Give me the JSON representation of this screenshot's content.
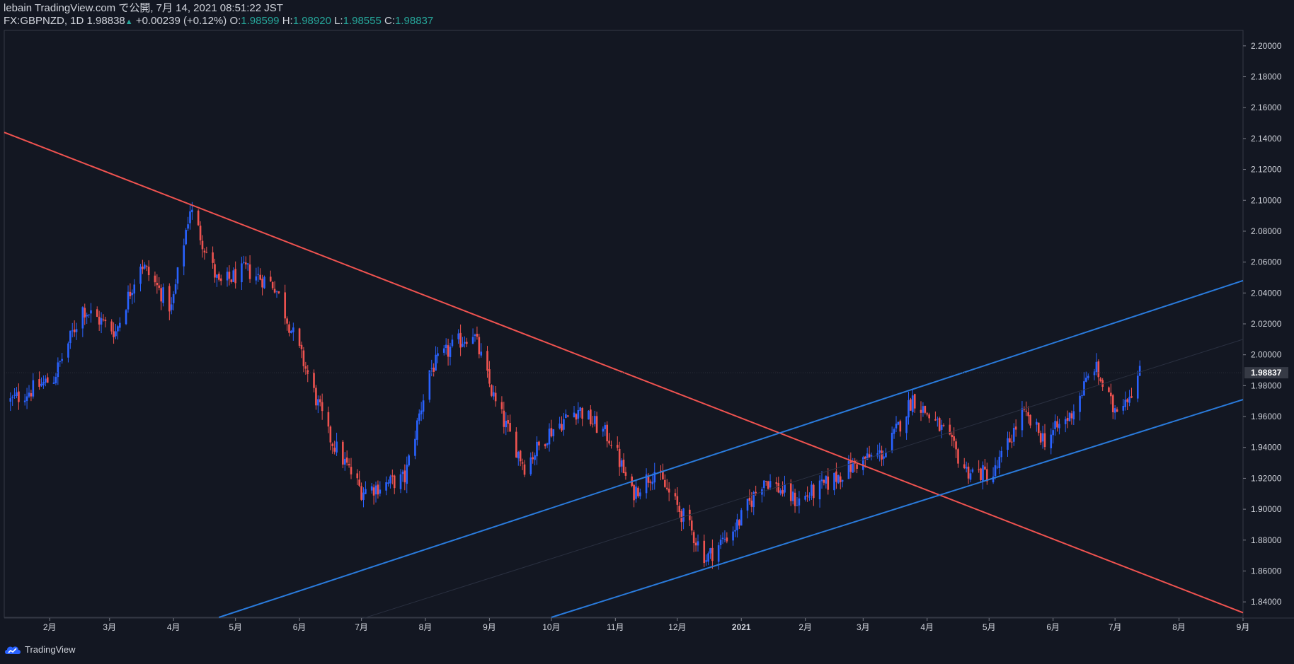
{
  "header": {
    "line1": "lebain TradingView.com で公開, 7月 14, 2021 08:51:22 JST",
    "symbol": "FX:GBPNZD, 1D",
    "price": "1.98838",
    "change_arrow": "▲",
    "change": "+0.00239 (+0.12%)",
    "o_label": "O:",
    "o_value": "1.98599",
    "h_label": "H:",
    "h_value": "1.98920",
    "l_label": "L:",
    "l_value": "1.98555",
    "c_label": "C:",
    "c_value": "1.98837"
  },
  "footer": {
    "brand": "TradingView"
  },
  "colors": {
    "background": "#131722",
    "up": "#2962ff",
    "down": "#ef5350",
    "trend_down": "#f05350",
    "channel": "#2a7bdc",
    "text": "#d1d4dc",
    "accent": "#26a69a"
  },
  "chart_data": {
    "type": "candlestick",
    "symbol": "FX:GBPNZD",
    "interval": "1D",
    "ylim": [
      1.83,
      2.21
    ],
    "y_ticks": [
      "2.20000",
      "2.18000",
      "2.16000",
      "2.14000",
      "2.12000",
      "2.10000",
      "2.08000",
      "2.06000",
      "2.04000",
      "2.02000",
      "2.00000",
      "1.98000",
      "1.96000",
      "1.94000",
      "1.92000",
      "1.90000",
      "1.88000",
      "1.86000",
      "1.84000"
    ],
    "x_ticks": [
      "2月",
      "3月",
      "4月",
      "5月",
      "6月",
      "7月",
      "8月",
      "9月",
      "10月",
      "11月",
      "12月",
      "2021",
      "2月",
      "3月",
      "4月",
      "5月",
      "6月",
      "7月",
      "8月",
      "9月"
    ],
    "last_price_label": "1.98837",
    "close_series": {
      "dates": [
        "2020-01-13",
        "2020-02-03",
        "2020-02-17",
        "2020-03-04",
        "2020-03-16",
        "2020-03-31",
        "2020-04-09",
        "2020-04-23",
        "2020-05-06",
        "2020-05-20",
        "2020-06-03",
        "2020-06-15",
        "2020-07-01",
        "2020-07-10",
        "2020-07-22",
        "2020-08-03",
        "2020-08-14",
        "2020-08-24",
        "2020-09-04",
        "2020-09-18",
        "2020-09-30",
        "2020-10-14",
        "2020-10-30",
        "2020-11-09",
        "2020-11-20",
        "2020-12-04",
        "2020-12-15",
        "2020-12-30",
        "2021-01-12",
        "2021-01-28",
        "2021-02-10",
        "2021-02-26",
        "2021-03-12",
        "2021-03-25",
        "2021-04-09",
        "2021-04-20",
        "2021-05-03",
        "2021-05-17",
        "2021-05-28",
        "2021-06-09",
        "2021-06-21",
        "2021-06-30",
        "2021-07-08",
        "2021-07-13"
      ],
      "closes": [
        1.97,
        1.985,
        2.03,
        2.015,
        2.06,
        2.03,
        2.095,
        2.045,
        2.055,
        2.045,
        1.995,
        1.948,
        1.912,
        1.915,
        1.92,
        1.99,
        2.005,
        2.015,
        1.968,
        1.928,
        1.95,
        1.965,
        1.945,
        1.91,
        1.925,
        1.895,
        1.868,
        1.89,
        1.92,
        1.905,
        1.915,
        1.93,
        1.937,
        1.972,
        1.95,
        1.925,
        1.922,
        1.962,
        1.945,
        1.96,
        1.993,
        1.965,
        1.975,
        1.988
      ]
    },
    "trend_lines": [
      {
        "name": "",
        "kind": "down",
        "points": [
          [
            "2020-01-10",
            2.144
          ],
          [
            "2021-09-01",
            1.833
          ]
        ]
      },
      {
        "name": "",
        "kind": "channel-upper",
        "points": [
          [
            "2020-04-23",
            1.83
          ],
          [
            "2021-09-01",
            2.048
          ]
        ]
      },
      {
        "name": "",
        "kind": "channel-lower",
        "points": [
          [
            "2020-10-01",
            1.83
          ],
          [
            "2021-09-01",
            1.971
          ]
        ]
      }
    ]
  }
}
